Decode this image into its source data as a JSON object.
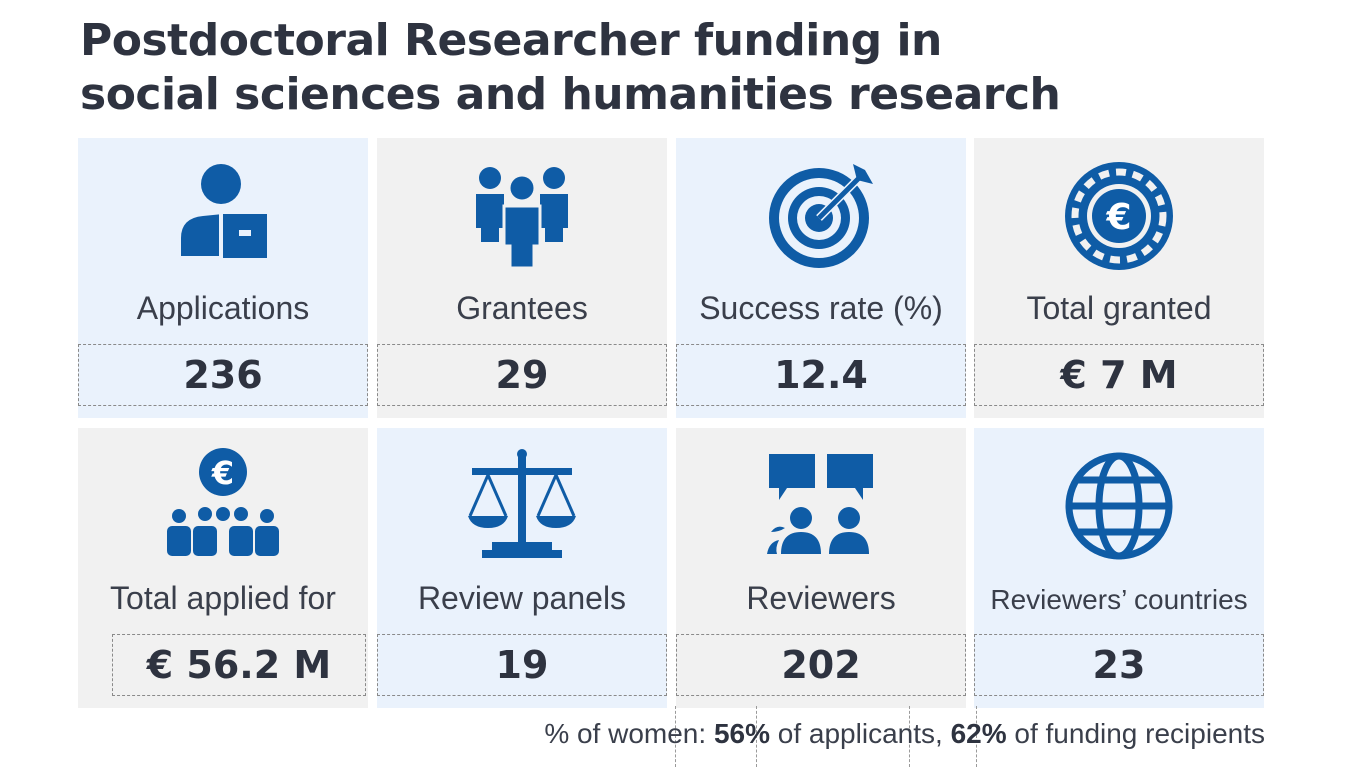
{
  "title_line1": "Postdoctoral Researcher funding in",
  "title_line2": "social sciences and humanities research",
  "colors": {
    "icon": "#0f5ca6",
    "tile_blue": "#eaf2fc",
    "tile_grey": "#f1f1f1",
    "text": "#2e3340"
  },
  "tiles": [
    {
      "label": "Applications",
      "value": "236",
      "icon": "applicant-icon"
    },
    {
      "label": "Grantees",
      "value": "29",
      "icon": "people-group-icon"
    },
    {
      "label": "Success rate (%)",
      "value": "12.4",
      "icon": "target-icon"
    },
    {
      "label": "Total granted",
      "value": "€ 7 M",
      "icon": "euro-coin-icon"
    },
    {
      "label": "Total applied for",
      "value": "€  56.2 M",
      "icon": "euro-crowd-icon"
    },
    {
      "label": "Review panels",
      "value": "19",
      "icon": "scales-icon"
    },
    {
      "label": "Reviewers",
      "value": "202",
      "icon": "reviewers-icon"
    },
    {
      "label": "Reviewers’ countries",
      "value": "23",
      "icon": "globe-icon"
    }
  ],
  "footnote": {
    "prefix": "% of women: ",
    "applicants_pct": "56%",
    "middle": " of applicants, ",
    "recipients_pct": "62%",
    "suffix": " of funding recipients"
  }
}
